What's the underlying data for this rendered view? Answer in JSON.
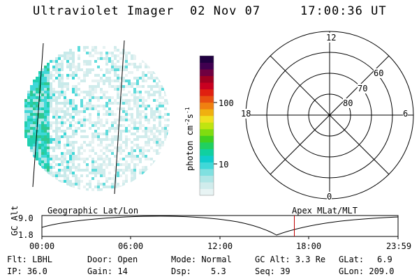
{
  "header": {
    "instrument": "Ultraviolet Imager",
    "date": "02 Nov 07",
    "time": "17:00:36 UT"
  },
  "colorbar": {
    "label": "photon cm",
    "label_exp1": "-2",
    "label_mid": "s",
    "label_exp2": "-1",
    "ticks": [
      "100",
      "10"
    ],
    "colors": [
      "#e8f4f4",
      "#d0ecec",
      "#b0e6e6",
      "#80e0e0",
      "#40d8d8",
      "#10cccc",
      "#10d0a0",
      "#20d060",
      "#40d020",
      "#80dc10",
      "#c0e410",
      "#f0e020",
      "#f0b010",
      "#f08010",
      "#e85010",
      "#e02010",
      "#c80020",
      "#a00020",
      "#700040",
      "#400050",
      "#200040"
    ]
  },
  "polar": {
    "labels": {
      "top": "12",
      "bottom": "0",
      "left": "18",
      "right": "6",
      "lat60": "60",
      "lat70": "70",
      "lat80": "80"
    }
  },
  "timeline": {
    "left_label": "Geographic Lat/Lon",
    "right_label": "Apex MLat/MLT",
    "axis_title": "GC Alt",
    "y_top": "9.0",
    "y_bottom": "1.8",
    "x_ticks": [
      "00:00",
      "06:00",
      "12:00",
      "18:00",
      "23:59"
    ],
    "current_hour": 17.01
  },
  "footer": {
    "col1": {
      "flt": "Flt: LBHL",
      "ip": "IP: 36.0"
    },
    "col2": {
      "door": "Door: Open",
      "gain": "Gain: 14"
    },
    "col3": {
      "mode": "Mode: Normal",
      "dsp_label": "Dsp:",
      "dsp_value": "5.3"
    },
    "col4": {
      "gcalt": "GC Alt: 3.3 Re",
      "seq": "Seq: 39"
    },
    "col5": {
      "glat_label": "GLat:",
      "glat_value": "6.9",
      "glon": "GLon: 209.0"
    }
  }
}
